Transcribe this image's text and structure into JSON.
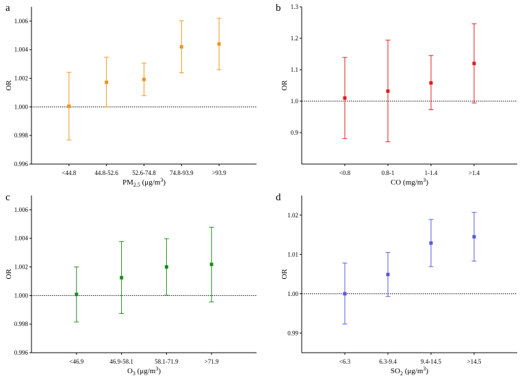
{
  "chart_data": [
    {
      "panel": "a",
      "type": "scatter",
      "error_bars": true,
      "color": "#F0961E",
      "categories": [
        "<44.8",
        "44.8-52.6",
        "52.6-74.8",
        "74.8-93.9",
        ">93.9"
      ],
      "values": [
        1.00005,
        1.00172,
        1.00192,
        1.0042,
        1.0044
      ],
      "lower": [
        0.99768,
        0.99999,
        1.00079,
        1.00238,
        1.0026
      ],
      "upper": [
        1.00242,
        1.00347,
        1.00307,
        1.00602,
        1.0062
      ],
      "xlabel": {
        "prefix": "PM",
        "sub": "2.5",
        "suffix": " (μg/m",
        "sup": "3",
        "end": ")"
      },
      "ylabel": "OR",
      "ylim": [
        0.996,
        1.007
      ],
      "yticks": [
        0.996,
        0.998,
        1.0,
        1.002,
        1.004,
        1.006
      ],
      "ytick_labels": [
        "0.996",
        "0.998",
        "1.000",
        "1.002",
        "1.004",
        "1.006"
      ],
      "reference_line": 1.0
    },
    {
      "panel": "b",
      "type": "scatter",
      "error_bars": true,
      "color": "#E41A1C",
      "categories": [
        "<0.8",
        "0.8-1",
        "1-1.4",
        ">1.4"
      ],
      "values": [
        1.01,
        1.032,
        1.058,
        1.12
      ],
      "lower": [
        0.881,
        0.871,
        0.973,
        0.994
      ],
      "upper": [
        1.139,
        1.194,
        1.145,
        1.246
      ],
      "xlabel": {
        "prefix": "CO",
        "sub": "",
        "suffix": " (mg/m",
        "sup": "3",
        "end": ")"
      },
      "ylabel": "OR",
      "ylim": [
        0.8,
        1.3
      ],
      "yticks": [
        0.9,
        1.0,
        1.1,
        1.2,
        1.3
      ],
      "ytick_labels": [
        "0.9",
        "1.0",
        "1.1",
        "1.2",
        "1.3"
      ],
      "reference_line": 1.0
    },
    {
      "panel": "c",
      "type": "scatter",
      "error_bars": true,
      "color": "#1E8C1E",
      "categories": [
        "<46.9",
        "46.9-58.1",
        "58.1-71.9",
        ">71.9"
      ],
      "values": [
        1.00008,
        1.00125,
        1.002,
        1.00218
      ],
      "lower": [
        0.99815,
        0.99875,
        1.00002,
        0.99955
      ],
      "upper": [
        1.002,
        1.00378,
        1.00398,
        1.00478
      ],
      "xlabel": {
        "prefix": "O",
        "sub": "3",
        "suffix": " (μg/m",
        "sup": "3",
        "end": ")"
      },
      "ylabel": "OR",
      "ylim": [
        0.996,
        1.007
      ],
      "yticks": [
        0.996,
        0.998,
        1.0,
        1.002,
        1.004,
        1.006
      ],
      "ytick_labels": [
        "0.996",
        "0.998",
        "1.000",
        "1.002",
        "1.004",
        "1.006"
      ],
      "reference_line": 1.0
    },
    {
      "panel": "d",
      "type": "scatter",
      "error_bars": true,
      "color": "#5A5ADC",
      "categories": [
        "<6.3",
        "6.3-9.4",
        "9.4-14.5",
        ">14.5"
      ],
      "values": [
        1.0,
        1.0049,
        1.0129,
        1.0145
      ],
      "lower": [
        0.9923,
        0.9993,
        1.0069,
        1.0083
      ],
      "upper": [
        1.0078,
        1.0105,
        1.0189,
        1.0207
      ],
      "xlabel": {
        "prefix": "SO",
        "sub": "2",
        "suffix": " (μg/m",
        "sup": "3",
        "end": ")"
      },
      "ylabel": "OR",
      "ylim": [
        0.985,
        1.025
      ],
      "yticks": [
        0.99,
        1.0,
        1.01,
        1.02
      ],
      "ytick_labels": [
        "0.99",
        "1.00",
        "1.01",
        "1.02"
      ],
      "reference_line": 1.0
    }
  ]
}
